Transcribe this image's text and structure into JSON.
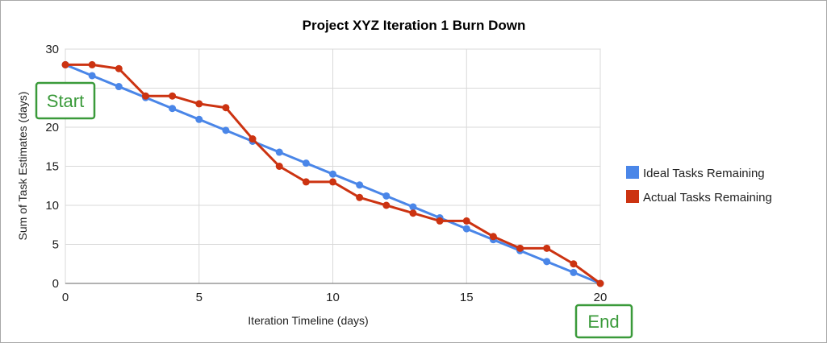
{
  "chart_data": {
    "type": "line",
    "title": "Project XYZ Iteration 1 Burn Down",
    "xlabel": "Iteration Timeline (days)",
    "ylabel": "Sum of Task Estimates (days)",
    "xlim": [
      0,
      20
    ],
    "ylim": [
      0,
      30
    ],
    "xticks": [
      0,
      5,
      10,
      15,
      20
    ],
    "yticks": [
      0,
      5,
      10,
      15,
      20,
      25,
      30
    ],
    "grid": true,
    "legend_position": "right",
    "x": [
      0,
      1,
      2,
      3,
      4,
      5,
      6,
      7,
      8,
      9,
      10,
      11,
      12,
      13,
      14,
      15,
      16,
      17,
      18,
      19,
      20
    ],
    "series": [
      {
        "name": "Ideal Tasks Remaining",
        "color": "#4a86e8",
        "values": [
          28,
          26.6,
          25.2,
          23.8,
          22.4,
          21,
          19.6,
          18.2,
          16.8,
          15.4,
          14,
          12.6,
          11.2,
          9.8,
          8.4,
          7,
          5.6,
          4.2,
          2.8,
          1.4,
          0
        ]
      },
      {
        "name": "Actual Tasks Remaining",
        "color": "#cc3311",
        "values": [
          28,
          28,
          27.5,
          24,
          24,
          23,
          22.5,
          18.5,
          15,
          13,
          13,
          11,
          10,
          9,
          8,
          8,
          6,
          4.5,
          4.5,
          2.5,
          0
        ]
      }
    ],
    "annotations": [
      {
        "text": "Start",
        "color": "#3a9a3a"
      },
      {
        "text": "End",
        "color": "#3a9a3a"
      }
    ]
  }
}
